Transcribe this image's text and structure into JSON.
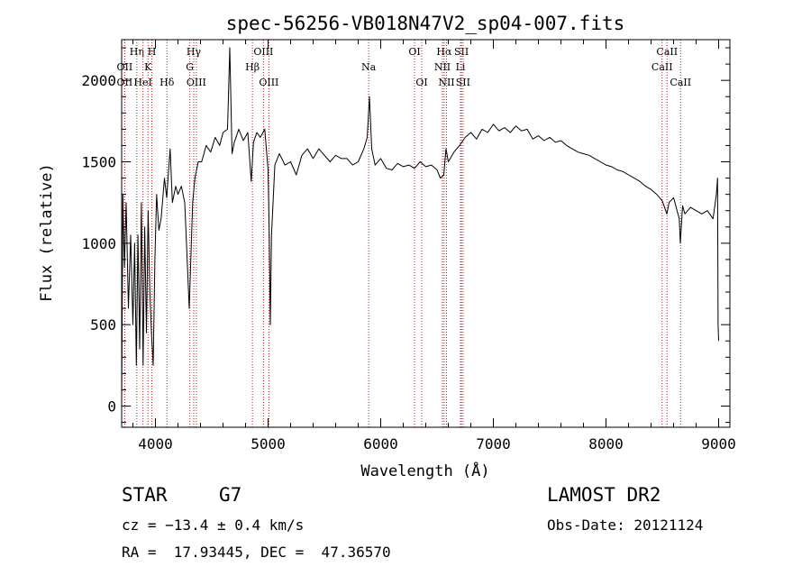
{
  "chart_data": {
    "type": "line",
    "title": "spec-56256-VB018N47V2_sp04-007.fits",
    "xlabel": "Wavelength (Å)",
    "ylabel": "Flux (relative)",
    "xlim": [
      3700,
      9100
    ],
    "ylim": [
      -130,
      2250
    ],
    "x_ticks": [
      4000,
      5000,
      6000,
      7000,
      8000,
      9000
    ],
    "y_ticks": [
      0,
      500,
      1000,
      1500,
      2000
    ],
    "grid": false,
    "series": [
      {
        "points": [
          [
            3700,
            0
          ],
          [
            3710,
            1300
          ],
          [
            3725,
            850
          ],
          [
            3740,
            1250
          ],
          [
            3760,
            600
          ],
          [
            3780,
            1050
          ],
          [
            3800,
            500
          ],
          [
            3815,
            1000
          ],
          [
            3830,
            250
          ],
          [
            3845,
            1050
          ],
          [
            3860,
            350
          ],
          [
            3875,
            1250
          ],
          [
            3890,
            250
          ],
          [
            3905,
            1100
          ],
          [
            3920,
            450
          ],
          [
            3935,
            1200
          ],
          [
            3950,
            700
          ],
          [
            3965,
            450
          ],
          [
            3980,
            250
          ],
          [
            3995,
            900
          ],
          [
            4010,
            1300
          ],
          [
            4030,
            1080
          ],
          [
            4050,
            1150
          ],
          [
            4080,
            1400
          ],
          [
            4100,
            1280
          ],
          [
            4130,
            1580
          ],
          [
            4150,
            1250
          ],
          [
            4180,
            1350
          ],
          [
            4200,
            1300
          ],
          [
            4230,
            1350
          ],
          [
            4260,
            1250
          ],
          [
            4300,
            600
          ],
          [
            4330,
            1250
          ],
          [
            4350,
            1400
          ],
          [
            4380,
            1500
          ],
          [
            4410,
            1500
          ],
          [
            4450,
            1600
          ],
          [
            4490,
            1560
          ],
          [
            4530,
            1650
          ],
          [
            4570,
            1600
          ],
          [
            4600,
            1680
          ],
          [
            4640,
            1700
          ],
          [
            4660,
            2200
          ],
          [
            4680,
            1550
          ],
          [
            4700,
            1620
          ],
          [
            4740,
            1700
          ],
          [
            4780,
            1630
          ],
          [
            4820,
            1680
          ],
          [
            4850,
            1380
          ],
          [
            4870,
            1620
          ],
          [
            4900,
            1680
          ],
          [
            4930,
            1650
          ],
          [
            4970,
            1700
          ],
          [
            5000,
            1450
          ],
          [
            5010,
            1050
          ],
          [
            5020,
            500
          ],
          [
            5030,
            1050
          ],
          [
            5060,
            1480
          ],
          [
            5100,
            1550
          ],
          [
            5150,
            1480
          ],
          [
            5200,
            1500
          ],
          [
            5250,
            1420
          ],
          [
            5300,
            1540
          ],
          [
            5350,
            1580
          ],
          [
            5400,
            1520
          ],
          [
            5450,
            1580
          ],
          [
            5500,
            1540
          ],
          [
            5550,
            1500
          ],
          [
            5600,
            1540
          ],
          [
            5650,
            1520
          ],
          [
            5700,
            1520
          ],
          [
            5750,
            1480
          ],
          [
            5800,
            1500
          ],
          [
            5850,
            1580
          ],
          [
            5880,
            1650
          ],
          [
            5900,
            1900
          ],
          [
            5920,
            1580
          ],
          [
            5950,
            1480
          ],
          [
            6000,
            1520
          ],
          [
            6050,
            1460
          ],
          [
            6100,
            1450
          ],
          [
            6150,
            1490
          ],
          [
            6200,
            1470
          ],
          [
            6250,
            1480
          ],
          [
            6300,
            1460
          ],
          [
            6350,
            1500
          ],
          [
            6400,
            1470
          ],
          [
            6450,
            1480
          ],
          [
            6500,
            1450
          ],
          [
            6530,
            1400
          ],
          [
            6560,
            1420
          ],
          [
            6580,
            1580
          ],
          [
            6600,
            1500
          ],
          [
            6650,
            1560
          ],
          [
            6700,
            1600
          ],
          [
            6750,
            1650
          ],
          [
            6800,
            1680
          ],
          [
            6850,
            1640
          ],
          [
            6900,
            1700
          ],
          [
            6950,
            1680
          ],
          [
            7000,
            1730
          ],
          [
            7050,
            1690
          ],
          [
            7100,
            1710
          ],
          [
            7150,
            1680
          ],
          [
            7200,
            1720
          ],
          [
            7250,
            1690
          ],
          [
            7300,
            1700
          ],
          [
            7350,
            1640
          ],
          [
            7400,
            1660
          ],
          [
            7450,
            1630
          ],
          [
            7500,
            1650
          ],
          [
            7550,
            1620
          ],
          [
            7600,
            1630
          ],
          [
            7650,
            1600
          ],
          [
            7700,
            1580
          ],
          [
            7750,
            1560
          ],
          [
            7800,
            1550
          ],
          [
            7850,
            1540
          ],
          [
            7900,
            1520
          ],
          [
            7950,
            1500
          ],
          [
            8000,
            1480
          ],
          [
            8050,
            1470
          ],
          [
            8100,
            1450
          ],
          [
            8150,
            1440
          ],
          [
            8200,
            1420
          ],
          [
            8250,
            1400
          ],
          [
            8300,
            1380
          ],
          [
            8350,
            1350
          ],
          [
            8400,
            1330
          ],
          [
            8450,
            1300
          ],
          [
            8500,
            1260
          ],
          [
            8540,
            1180
          ],
          [
            8560,
            1250
          ],
          [
            8600,
            1280
          ],
          [
            8650,
            1150
          ],
          [
            8660,
            1000
          ],
          [
            8680,
            1230
          ],
          [
            8700,
            1180
          ],
          [
            8750,
            1220
          ],
          [
            8800,
            1200
          ],
          [
            8850,
            1180
          ],
          [
            8900,
            1200
          ],
          [
            8950,
            1150
          ],
          [
            8980,
            1300
          ],
          [
            8990,
            1400
          ],
          [
            8995,
            500
          ],
          [
            9000,
            400
          ]
        ],
        "color": "#000000"
      }
    ],
    "line_markers": [
      {
        "label": "OII",
        "x": 3727,
        "row": 1
      },
      {
        "label": "OII",
        "x": 3727,
        "row": 2
      },
      {
        "label": "Hη",
        "x": 3835,
        "row": 0
      },
      {
        "label": "HeI",
        "x": 3889,
        "row": 2
      },
      {
        "label": "K",
        "x": 3934,
        "row": 1
      },
      {
        "label": "H",
        "x": 3968,
        "row": 0
      },
      {
        "label": "Hδ",
        "x": 4102,
        "row": 2
      },
      {
        "label": "Hγ",
        "x": 4340,
        "row": 0
      },
      {
        "label": "G",
        "x": 4305,
        "row": 1
      },
      {
        "label": "OIII",
        "x": 4363,
        "row": 2
      },
      {
        "label": "OIII",
        "x": 4959,
        "row": 0
      },
      {
        "label": "Hβ",
        "x": 4861,
        "row": 1
      },
      {
        "label": "OIII",
        "x": 5007,
        "row": 2
      },
      {
        "label": "Na",
        "x": 5893,
        "row": 1
      },
      {
        "label": "OI",
        "x": 6300,
        "row": 0
      },
      {
        "label": "OI",
        "x": 6364,
        "row": 2
      },
      {
        "label": "Hα",
        "x": 6563,
        "row": 0
      },
      {
        "label": "NII",
        "x": 6548,
        "row": 1
      },
      {
        "label": "NII",
        "x": 6584,
        "row": 2
      },
      {
        "label": "SII",
        "x": 6717,
        "row": 0
      },
      {
        "label": "Li",
        "x": 6708,
        "row": 1
      },
      {
        "label": "SII",
        "x": 6731,
        "row": 2
      },
      {
        "label": "CaII",
        "x": 8542,
        "row": 0
      },
      {
        "label": "CaII",
        "x": 8498,
        "row": 1
      },
      {
        "label": "CaII",
        "x": 8662,
        "row": 2
      }
    ]
  },
  "info": {
    "object_class": "STAR",
    "subclass": "G7",
    "survey": "LAMOST DR2",
    "redshift": "cz = −13.4 ± 0.4 km/s",
    "obs_date": "Obs-Date: 20121124",
    "coords": "RA =  17.93445, DEC =  47.36570"
  }
}
